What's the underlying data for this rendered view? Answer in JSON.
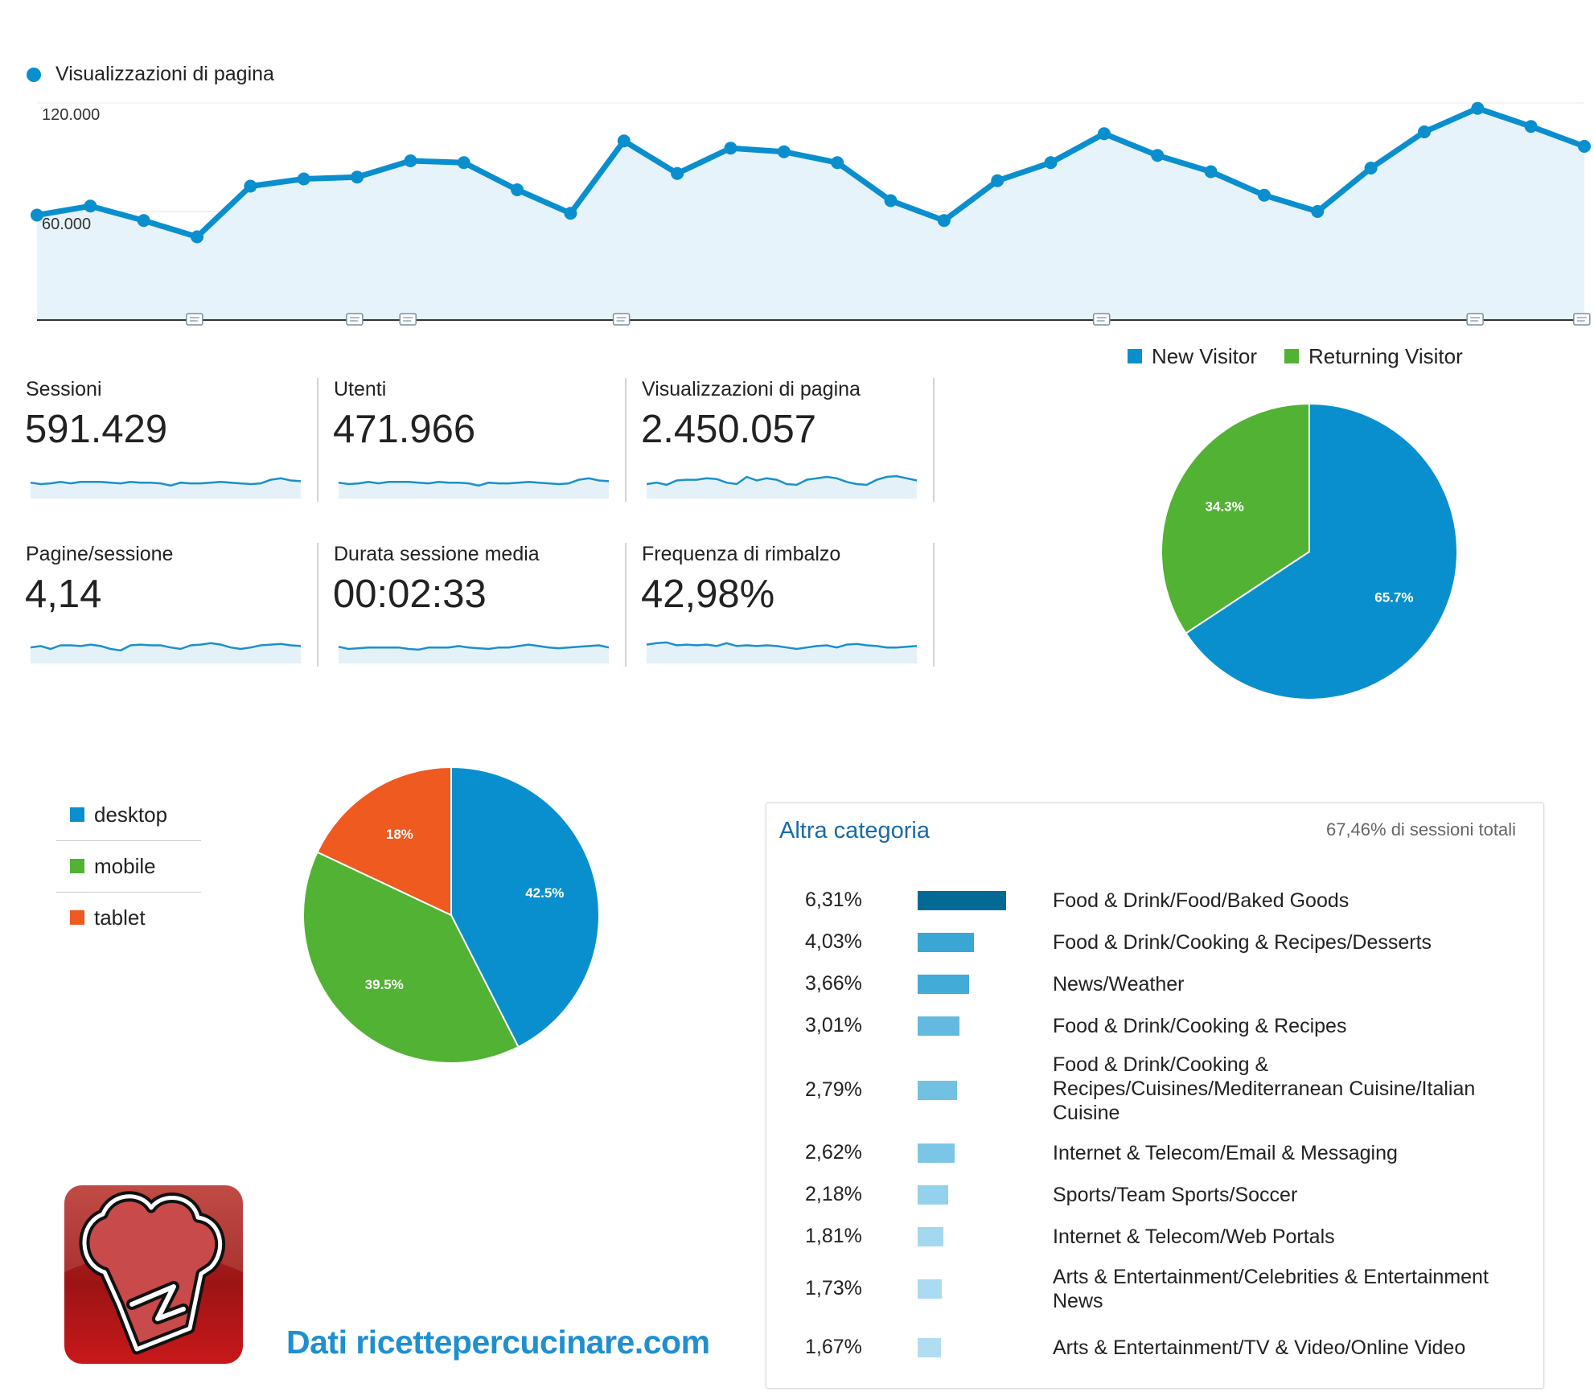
{
  "colors": {
    "line": "#0a8fce",
    "area": "#e6f3fa",
    "new": "#0a8fce",
    "returning": "#51b233",
    "desktop": "#0a8fce",
    "mobile": "#51b233",
    "tablet": "#ee5a20"
  },
  "main_chart": {
    "legend": "Visualizzazioni di pagina",
    "tick_120": "120.000",
    "tick_60": "60.000"
  },
  "metrics": [
    {
      "label": "Sessioni",
      "value": "591.429",
      "spark": [
        52,
        50,
        51,
        53,
        51,
        53,
        53,
        53,
        52,
        51,
        53,
        52,
        52,
        51,
        48,
        52,
        51,
        51,
        52,
        53,
        52,
        51,
        50,
        51,
        56,
        58,
        55,
        54
      ]
    },
    {
      "label": "Utenti",
      "value": "471.966",
      "spark": [
        52,
        50,
        51,
        53,
        51,
        53,
        53,
        53,
        52,
        51,
        53,
        52,
        52,
        51,
        48,
        52,
        51,
        51,
        52,
        53,
        52,
        51,
        50,
        51,
        56,
        58,
        55,
        54
      ]
    },
    {
      "label": "Visualizzazioni di pagina",
      "value": "2.450.057",
      "spark": [
        50,
        52,
        49,
        55,
        56,
        56,
        58,
        57,
        52,
        50,
        60,
        55,
        58,
        56,
        50,
        49,
        56,
        58,
        60,
        58,
        53,
        50,
        49,
        56,
        60,
        61,
        58,
        55
      ]
    },
    {
      "label": "Pagine/sessione",
      "value": "4,14",
      "spark": [
        52,
        54,
        50,
        55,
        55,
        54,
        56,
        54,
        50,
        48,
        55,
        56,
        55,
        55,
        52,
        50,
        55,
        56,
        58,
        56,
        52,
        50,
        52,
        55,
        56,
        57,
        55,
        54
      ]
    },
    {
      "label": "Durata sessione media",
      "value": "00:02:33",
      "spark": [
        53,
        50,
        51,
        52,
        52,
        52,
        52,
        50,
        49,
        52,
        52,
        52,
        54,
        52,
        51,
        50,
        52,
        52,
        54,
        56,
        54,
        52,
        51,
        52,
        53,
        54,
        55,
        52
      ]
    },
    {
      "label": "Frequenza di rimbalzo",
      "value": "42,98%",
      "spark": [
        56,
        58,
        59,
        55,
        56,
        55,
        56,
        54,
        58,
        54,
        55,
        54,
        55,
        54,
        52,
        50,
        52,
        54,
        55,
        52,
        56,
        57,
        55,
        54,
        52,
        52,
        53,
        54
      ]
    }
  ],
  "visitor_legend": {
    "new": "New Visitor",
    "returning": "Returning Visitor"
  },
  "device_legend": [
    "desktop",
    "mobile",
    "tablet"
  ],
  "category": {
    "title": "Altra categoria",
    "total": "67,46% di sessioni totali",
    "rows": [
      {
        "pct": "6,31%",
        "value": 6.31,
        "name": "Food & Drink/Food/Baked Goods",
        "color": "#046a95"
      },
      {
        "pct": "4,03%",
        "value": 4.03,
        "name": "Food & Drink/Cooking & Recipes/Desserts",
        "color": "#3aa6d4"
      },
      {
        "pct": "3,66%",
        "value": 3.66,
        "name": "News/Weather",
        "color": "#43abd8"
      },
      {
        "pct": "3,01%",
        "value": 3.01,
        "name": "Food & Drink/Cooking & Recipes",
        "color": "#63bae0"
      },
      {
        "pct": "2,79%",
        "value": 2.79,
        "name": "Food & Drink/Cooking & Recipes/Cuisines/Mediterranean Cuisine/Italian Cuisine",
        "color": "#72c1e3"
      },
      {
        "pct": "2,62%",
        "value": 2.62,
        "name": "Internet & Telecom/Email & Messaging",
        "color": "#7bc6e6"
      },
      {
        "pct": "2,18%",
        "value": 2.18,
        "name": "Sports/Team Sports/Soccer",
        "color": "#94d1ec"
      },
      {
        "pct": "1,81%",
        "value": 1.81,
        "name": "Internet & Telecom/Web Portals",
        "color": "#a4d8ef"
      },
      {
        "pct": "1,73%",
        "value": 1.73,
        "name": "Arts & Entertainment/Celebrities & Entertainment News",
        "color": "#aadbf0"
      },
      {
        "pct": "1,67%",
        "value": 1.67,
        "name": "Arts & Entertainment/TV & Video/Online Video",
        "color": "#b0ddf1"
      }
    ]
  },
  "brand_text": "Dati ricettepercucinare.com",
  "logo_icon": "chef-hat-logo-icon",
  "chart_data": [
    {
      "type": "area",
      "series": [
        {
          "name": "Visualizzazioni di pagina",
          "values": [
            58000,
            63000,
            55000,
            46000,
            74000,
            78000,
            79000,
            88000,
            87000,
            72000,
            59000,
            99000,
            81000,
            95000,
            93000,
            87000,
            66000,
            55000,
            77000,
            87000,
            103000,
            91000,
            82000,
            69000,
            60000,
            84000,
            104000,
            117000,
            107000,
            96000
          ]
        }
      ],
      "yticks": [
        60000,
        120000
      ],
      "ylim": [
        0,
        120000
      ],
      "grid": true
    },
    {
      "type": "pie",
      "labels": [
        "New Visitor",
        "Returning Visitor"
      ],
      "values": [
        65.7,
        34.3
      ],
      "value_labels": [
        "65.7%",
        "34.3%"
      ],
      "legend": "top"
    },
    {
      "type": "pie",
      "labels": [
        "desktop",
        "mobile",
        "tablet"
      ],
      "values": [
        42.5,
        39.5,
        18
      ],
      "value_labels": [
        "42.5%",
        "39.5%",
        "18%"
      ],
      "legend": "left"
    },
    {
      "type": "bar",
      "title": "Altra categoria",
      "categories": [
        "Food & Drink/Food/Baked Goods",
        "Food & Drink/Cooking & Recipes/Desserts",
        "News/Weather",
        "Food & Drink/Cooking & Recipes",
        "Food & Drink/Cooking & Recipes/Cuisines/Mediterranean Cuisine/Italian Cuisine",
        "Internet & Telecom/Email & Messaging",
        "Sports/Team Sports/Soccer",
        "Internet & Telecom/Web Portals",
        "Arts & Entertainment/Celebrities & Entertainment News",
        "Arts & Entertainment/TV & Video/Online Video"
      ],
      "values": [
        6.31,
        4.03,
        3.66,
        3.01,
        2.79,
        2.62,
        2.18,
        1.81,
        1.73,
        1.67
      ]
    }
  ]
}
